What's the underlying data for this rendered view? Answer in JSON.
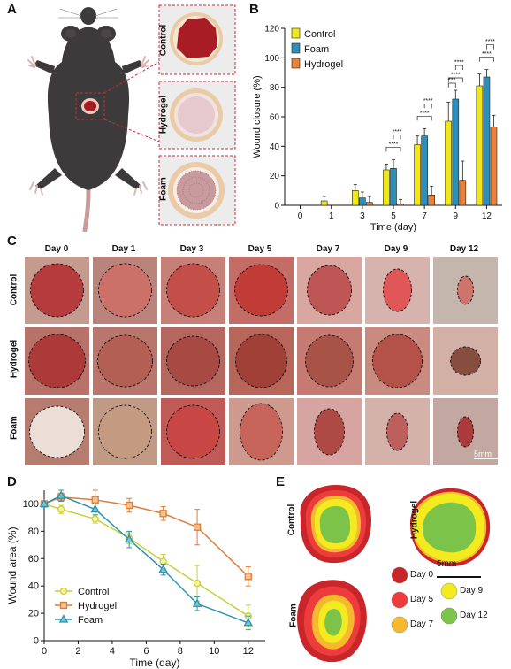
{
  "panels": {
    "a": "A",
    "b": "B",
    "c": "C",
    "d": "D",
    "e": "E"
  },
  "panel_a": {
    "insets": [
      "Control",
      "Hydrogel",
      "Foam"
    ]
  },
  "panel_c": {
    "days": [
      "Day 0",
      "Day 1",
      "Day 3",
      "Day 5",
      "Day 7",
      "Day 9",
      "Day 12"
    ],
    "rows": [
      "Control",
      "Hydrogel",
      "Foam"
    ],
    "scale_bar": "5mm"
  },
  "panel_e": {
    "labels": [
      "Control",
      "Hydrogel",
      "Foam"
    ],
    "scale_bar": "5mm",
    "legend": [
      {
        "label": "Day 0",
        "color": "#c9262c"
      },
      {
        "label": "Day 5",
        "color": "#ee3b3b"
      },
      {
        "label": "Day 7",
        "color": "#f5b82e"
      },
      {
        "label": "Day 9",
        "color": "#f3ea1f"
      },
      {
        "label": "Day 12",
        "color": "#7cc349"
      }
    ]
  },
  "chart_data": [
    {
      "type": "bar",
      "panel": "B",
      "xlabel": "Time (day)",
      "ylabel": "Wound closure (%)",
      "categories": [
        "0",
        "1",
        "3",
        "5",
        "7",
        "9",
        "12"
      ],
      "ylim": [
        0,
        120
      ],
      "yticks": [
        0,
        20,
        40,
        60,
        80,
        100,
        120
      ],
      "legend_position": "top-left",
      "series": [
        {
          "name": "Control",
          "color": "#f0e61e",
          "values": [
            0,
            3,
            10,
            24,
            41,
            57,
            81
          ],
          "errors": [
            0,
            3,
            4,
            4,
            6,
            13,
            8
          ]
        },
        {
          "name": "Foam",
          "color": "#2f8fb8",
          "values": [
            0,
            0,
            5,
            25,
            47,
            72,
            87
          ],
          "errors": [
            0,
            0,
            4,
            6,
            5,
            6,
            5
          ]
        },
        {
          "name": "Hydrogel",
          "color": "#e8823a",
          "values": [
            0,
            0,
            2,
            1,
            7,
            17,
            53
          ],
          "errors": [
            0,
            0,
            4,
            3,
            6,
            13,
            8
          ]
        }
      ],
      "significance": [
        {
          "day": "5",
          "pairs": [
            {
              "from": "Control",
              "to": "Hydrogel",
              "label": "****"
            },
            {
              "from": "Foam",
              "to": "Hydrogel",
              "label": "****"
            }
          ]
        },
        {
          "day": "7",
          "pairs": [
            {
              "from": "Control",
              "to": "Hydrogel",
              "label": "****"
            },
            {
              "from": "Foam",
              "to": "Hydrogel",
              "label": "****"
            }
          ]
        },
        {
          "day": "9",
          "pairs": [
            {
              "from": "Control",
              "to": "Hydrogel",
              "label": "****"
            },
            {
              "from": "Foam",
              "to": "Hydrogel",
              "label": "****"
            },
            {
              "from": "Control",
              "to": "Foam",
              "label": "***"
            }
          ]
        },
        {
          "day": "12",
          "pairs": [
            {
              "from": "Control",
              "to": "Hydrogel",
              "label": "****"
            },
            {
              "from": "Foam",
              "to": "Hydrogel",
              "label": "****"
            }
          ]
        }
      ]
    },
    {
      "type": "line",
      "panel": "D",
      "xlabel": "Time (day)",
      "ylabel": "Wound area (%)",
      "xlim": [
        0,
        13
      ],
      "ylim": [
        0,
        110
      ],
      "xticks": [
        0,
        2,
        4,
        6,
        8,
        10,
        12
      ],
      "yticks": [
        0,
        20,
        40,
        60,
        80,
        100
      ],
      "legend_position": "bottom-left",
      "x": [
        0,
        1,
        3,
        5,
        7,
        9,
        12
      ],
      "series": [
        {
          "name": "Control",
          "color": "#c9cf3a",
          "marker": "circle",
          "values": [
            100,
            96,
            89,
            75,
            58,
            42,
            18
          ],
          "errors": [
            0,
            3,
            3,
            4,
            5,
            13,
            8
          ]
        },
        {
          "name": "Hydrogel",
          "color": "#e07b36",
          "marker": "square",
          "values": [
            100,
            105,
            103,
            99,
            93,
            83,
            47
          ],
          "errors": [
            0,
            3,
            7,
            5,
            5,
            13,
            7
          ]
        },
        {
          "name": "Foam",
          "color": "#2a93ad",
          "marker": "triangle",
          "values": [
            100,
            106,
            96,
            74,
            52,
            27,
            13
          ],
          "errors": [
            0,
            4,
            4,
            6,
            4,
            5,
            5
          ]
        }
      ]
    }
  ]
}
